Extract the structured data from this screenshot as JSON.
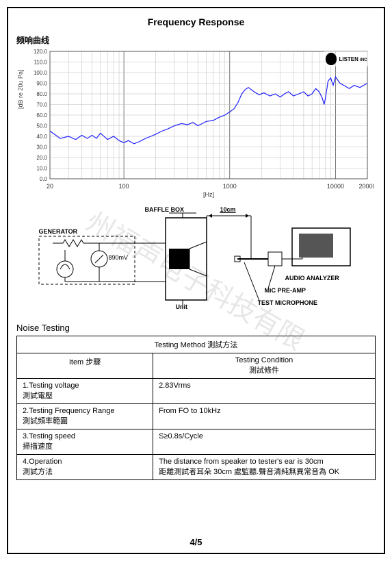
{
  "page": {
    "title": "Frequency   Response",
    "subtitle": "频响曲线",
    "page_number": "4/5",
    "watermark": "州福声电子科技有限"
  },
  "logo": {
    "text": "LISTEN",
    "sub": "INC"
  },
  "freq_chart": {
    "type": "line",
    "ylabel": "[dB re 20u Pa]",
    "xlabel": "[Hz]",
    "xscale": "log",
    "xlim": [
      20,
      20000
    ],
    "ylim": [
      0,
      120
    ],
    "ytick_step": 10,
    "yticks": [
      0,
      10,
      20,
      30,
      40,
      50,
      60,
      70,
      80,
      90,
      100,
      110,
      120
    ],
    "xticks_major": [
      20,
      100,
      1000,
      10000,
      20000
    ],
    "xticks_major_labels": [
      "20",
      "100",
      "1000",
      "10000",
      "20000"
    ],
    "xticks_minor": [
      30,
      40,
      50,
      60,
      70,
      80,
      90,
      200,
      300,
      400,
      500,
      600,
      700,
      800,
      900,
      2000,
      3000,
      4000,
      5000,
      6000,
      7000,
      8000,
      9000
    ],
    "label_fontsize": 9,
    "line_color": "#2020ff",
    "line_width": 1.2,
    "grid_color": "#555555",
    "grid_minor_color": "#bbbbbb",
    "background_color": "#ffffff",
    "data": [
      [
        20,
        45
      ],
      [
        22,
        42
      ],
      [
        25,
        38
      ],
      [
        30,
        40
      ],
      [
        35,
        37
      ],
      [
        40,
        41
      ],
      [
        45,
        38
      ],
      [
        50,
        41
      ],
      [
        55,
        38
      ],
      [
        60,
        43
      ],
      [
        70,
        37
      ],
      [
        80,
        40
      ],
      [
        90,
        36
      ],
      [
        100,
        34
      ],
      [
        110,
        36
      ],
      [
        125,
        33
      ],
      [
        140,
        35
      ],
      [
        160,
        38
      ],
      [
        180,
        40
      ],
      [
        200,
        42
      ],
      [
        230,
        45
      ],
      [
        260,
        47
      ],
      [
        300,
        50
      ],
      [
        350,
        52
      ],
      [
        400,
        51
      ],
      [
        450,
        53
      ],
      [
        500,
        50
      ],
      [
        550,
        52
      ],
      [
        600,
        54
      ],
      [
        700,
        55
      ],
      [
        800,
        58
      ],
      [
        900,
        60
      ],
      [
        1000,
        63
      ],
      [
        1100,
        66
      ],
      [
        1200,
        72
      ],
      [
        1300,
        80
      ],
      [
        1400,
        84
      ],
      [
        1500,
        86
      ],
      [
        1700,
        82
      ],
      [
        1900,
        79
      ],
      [
        2100,
        81
      ],
      [
        2400,
        78
      ],
      [
        2700,
        80
      ],
      [
        3000,
        77
      ],
      [
        3300,
        80
      ],
      [
        3600,
        82
      ],
      [
        4000,
        78
      ],
      [
        4500,
        80
      ],
      [
        5000,
        82
      ],
      [
        5500,
        78
      ],
      [
        6000,
        80
      ],
      [
        6500,
        85
      ],
      [
        7000,
        82
      ],
      [
        7500,
        76
      ],
      [
        7800,
        70
      ],
      [
        8000,
        75
      ],
      [
        8500,
        92
      ],
      [
        9000,
        95
      ],
      [
        9500,
        88
      ],
      [
        10000,
        96
      ],
      [
        11000,
        90
      ],
      [
        12000,
        88
      ],
      [
        13500,
        85
      ],
      [
        15000,
        88
      ],
      [
        17000,
        86
      ],
      [
        20000,
        90
      ]
    ]
  },
  "diagram": {
    "labels": {
      "generator": "GENERATOR",
      "baffle_box": "BAFFLE BOX",
      "distance": "10cm",
      "voltage": "890mV",
      "unit": "Unit",
      "analyzer": "AUDIO ANALYZER",
      "preamp": "MiC PRE-AMP",
      "mic": "TEST MiCROPHONE"
    },
    "stroke": "#000000",
    "dash": "4,3"
  },
  "noise": {
    "heading": "Noise  Testing",
    "table_title": "Testing Method 測試方法",
    "col1_header": "Item 步驟",
    "col2_header_line1": "Testing Condition",
    "col2_header_line2": "測試條件",
    "rows": [
      {
        "c1a": "1.Testing  voltage",
        "c1b": "  測試電壓",
        "c2": "2.83Vrms"
      },
      {
        "c1a": "2.Testing Frequency Range",
        "c1b": "  測試頻率範圍",
        "c2": "From FO to 10kHz"
      },
      {
        "c1a": "3.Testing speed",
        "c1b": "  掃描速度",
        "c2": "S≥0.8s/Cycle"
      },
      {
        "c1a": "4.Operation",
        "c1b": "  測試方法",
        "c2a": "The distance from speaker to tester's ear is 30cm",
        "c2b": "距離測試者耳朵 30cm 處監聽.聲音清純無異常音為 OK"
      }
    ]
  }
}
